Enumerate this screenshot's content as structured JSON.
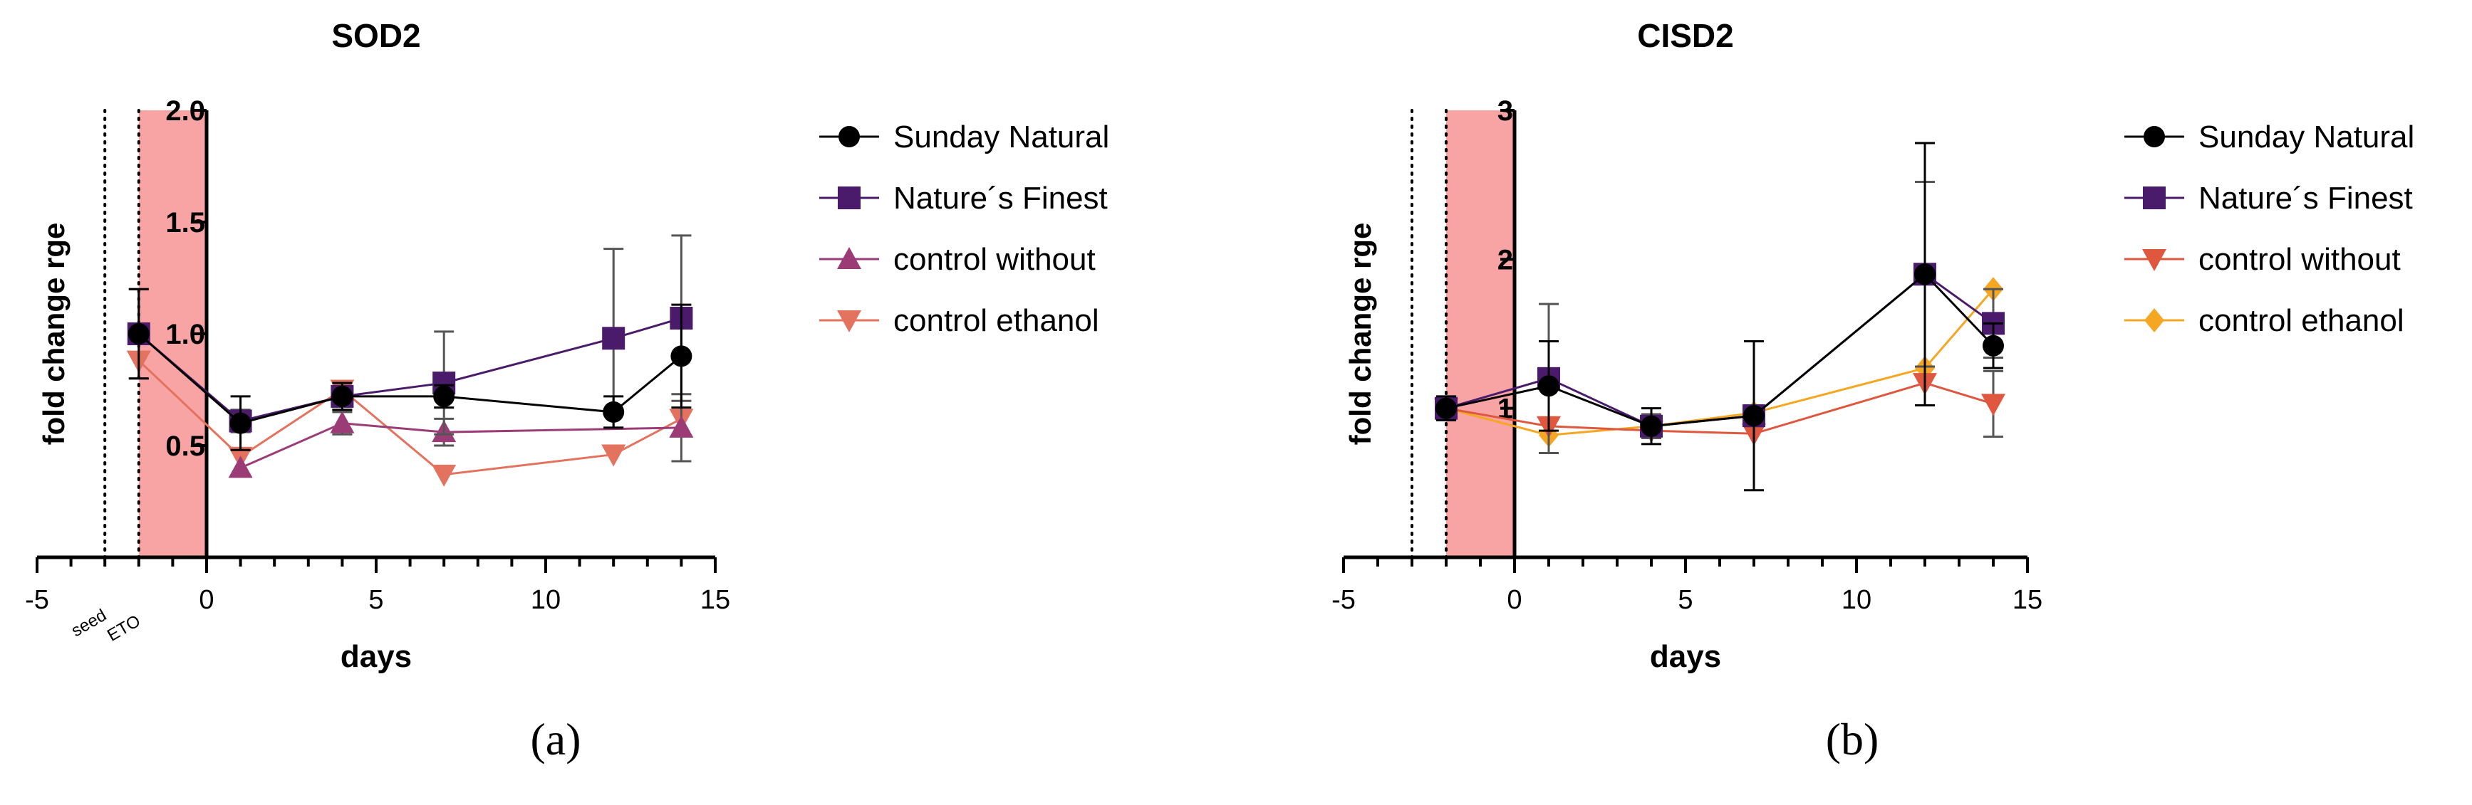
{
  "figure": {
    "panels": [
      {
        "caption": "(a)",
        "chart_data": {
          "type": "line",
          "title": "SOD2",
          "xlabel": "days",
          "ylabel": "fold change rge",
          "xlim": [
            -5,
            15
          ],
          "ylim": [
            0,
            2.0
          ],
          "xticks": [
            -5,
            0,
            5,
            10,
            15
          ],
          "xtick_labels": [
            "-5",
            "0",
            "5",
            "10",
            "15"
          ],
          "yticks": [
            0.5,
            1.0,
            1.5,
            2.0
          ],
          "ytick_labels": [
            "0.5",
            "1.0",
            "1.5",
            "2.0"
          ],
          "minor_x_step": 1,
          "shaded_region": {
            "x": [
              -2,
              0
            ],
            "color": "#f9a4a4"
          },
          "vertical_lines": [
            {
              "x": -3,
              "label": "seed"
            },
            {
              "x": -2,
              "label": "ETO"
            }
          ],
          "legend_position": "right",
          "series": [
            {
              "name": "Sunday Natural",
              "color": "#000000",
              "marker": "circle",
              "x": [
                -2,
                1,
                4,
                7,
                12,
                14
              ],
              "y": [
                1.0,
                0.6,
                0.72,
                0.72,
                0.65,
                0.9
              ],
              "err": [
                0.2,
                0.12,
                0.06,
                0.05,
                0.07,
                0.23
              ]
            },
            {
              "name": "Nature´s Finest",
              "color": "#4b1b6b",
              "marker": "square",
              "x": [
                -2,
                1,
                4,
                7,
                12,
                14
              ],
              "y": [
                1.0,
                0.61,
                0.72,
                0.78,
                0.98,
                1.07
              ],
              "err": [
                0.2,
                0.05,
                0.06,
                0.23,
                0.4,
                0.37
              ]
            },
            {
              "name": "control without",
              "color": "#9b3c77",
              "marker": "triangle-up",
              "x": [
                1,
                4,
                7,
                14
              ],
              "y": [
                0.4,
                0.6,
                0.56,
                0.58
              ],
              "err": [
                0.0,
                0.05,
                0.06,
                0.15
              ]
            },
            {
              "name": "control ethanol",
              "color": "#e3735e",
              "marker": "triangle-down",
              "x": [
                -2,
                1,
                4,
                7,
                12,
                14
              ],
              "y": [
                0.88,
                0.45,
                0.75,
                0.37,
                0.46,
                0.62
              ],
              "err": [
                0.0,
                0.0,
                0.0,
                0.0,
                0.0,
                0.0
              ]
            }
          ]
        }
      },
      {
        "caption": "(b)",
        "chart_data": {
          "type": "line",
          "title": "CISD2",
          "xlabel": "days",
          "ylabel": "fold change rge",
          "xlim": [
            -5,
            15
          ],
          "ylim": [
            0,
            3
          ],
          "xticks": [
            -5,
            0,
            5,
            10,
            15
          ],
          "xtick_labels": [
            "-5",
            "0",
            "5",
            "10",
            "15"
          ],
          "yticks": [
            1,
            2,
            3
          ],
          "ytick_labels": [
            "1",
            "2",
            "3"
          ],
          "minor_x_step": 1,
          "shaded_region": {
            "x": [
              -2,
              0
            ],
            "color": "#f9a4a4"
          },
          "vertical_lines": [
            {
              "x": -3,
              "label": ""
            },
            {
              "x": -2,
              "label": ""
            }
          ],
          "legend_position": "right",
          "series": [
            {
              "name": "Sunday Natural",
              "color": "#000000",
              "marker": "circle",
              "x": [
                -2,
                1,
                4,
                7,
                12,
                14
              ],
              "y": [
                1.0,
                1.15,
                0.88,
                0.95,
                1.9,
                1.42
              ],
              "err": [
                0.08,
                0.3,
                0.12,
                0.5,
                0.88,
                0.15
              ]
            },
            {
              "name": "Nature´s Finest",
              "color": "#4b1b6b",
              "marker": "square",
              "x": [
                -2,
                1,
                4,
                7,
                12,
                14
              ],
              "y": [
                1.0,
                1.2,
                0.88,
                0.95,
                1.9,
                1.57
              ],
              "err": [
                0.05,
                0.5,
                0.08,
                0.07,
                0.62,
                0.23
              ]
            },
            {
              "name": "control without",
              "color": "#e0573f",
              "marker": "triangle-down",
              "x": [
                -2,
                1,
                4,
                7,
                12,
                14
              ],
              "y": [
                1.0,
                0.88,
                0.85,
                0.83,
                1.17,
                1.03
              ],
              "err": [
                0.0,
                0.0,
                0.0,
                0.0,
                0.0,
                0.22
              ]
            },
            {
              "name": "control ethanol",
              "color": "#f5a623",
              "marker": "diamond",
              "x": [
                -2,
                1,
                4,
                7,
                12,
                14
              ],
              "y": [
                1.0,
                0.82,
                0.88,
                0.97,
                1.27,
                1.8
              ],
              "err": [
                0.0,
                0.0,
                0.0,
                0.0,
                0.0,
                0.0
              ]
            }
          ]
        }
      }
    ]
  }
}
